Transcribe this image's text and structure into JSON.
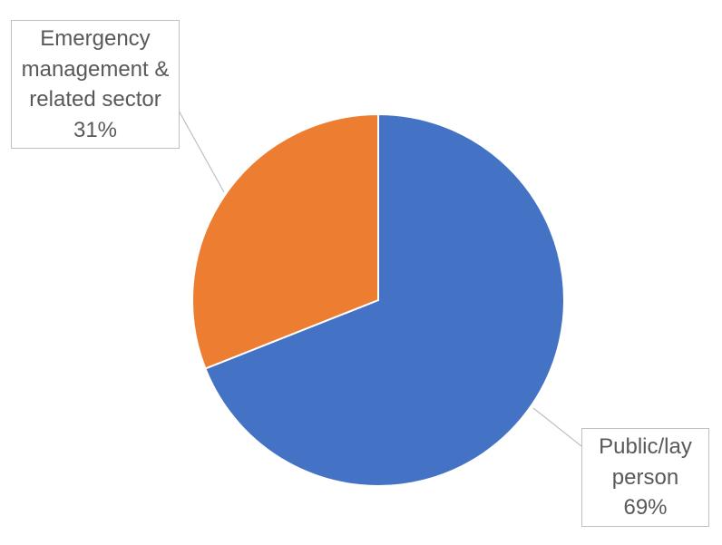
{
  "chart_data": {
    "type": "pie",
    "categories": [
      "Public/lay person",
      "Emergency management & related sector"
    ],
    "values": [
      69,
      31
    ],
    "value_labels": [
      "69%",
      "31%"
    ],
    "colors": [
      "#4472c4",
      "#ed7d31"
    ]
  }
}
